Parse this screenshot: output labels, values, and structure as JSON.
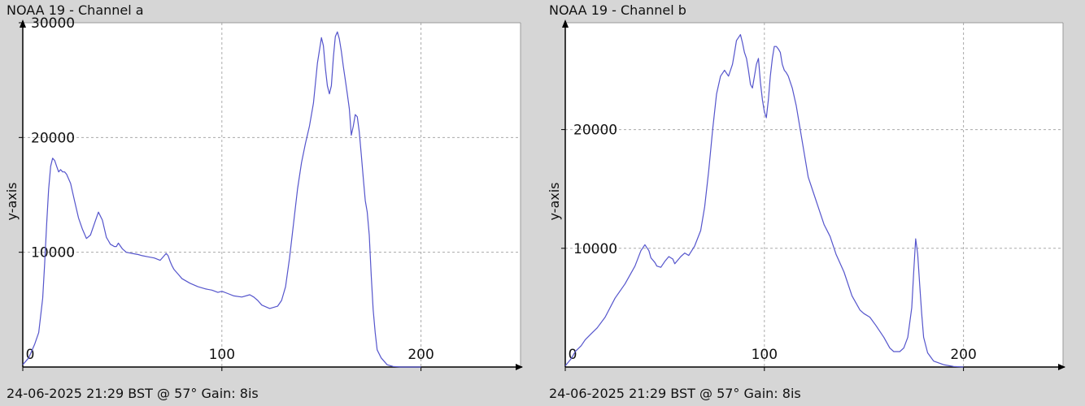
{
  "chart_data": [
    {
      "type": "line",
      "title": "NOAA 19 - Channel a",
      "footer": "24-06-2025 21:29 BST @ 57° Gain: 8is",
      "ylabel": "y-axis",
      "xlabel": "",
      "xlim": [
        0,
        250
      ],
      "ylim": [
        0,
        30000
      ],
      "x_ticks": [
        0,
        100,
        200
      ],
      "y_ticks": [
        10000,
        20000,
        30000
      ],
      "grid": true,
      "line_color": "#5555cc",
      "series": [
        {
          "x": [
            0,
            3,
            6,
            8,
            10,
            11,
            12,
            13,
            14,
            15,
            16,
            17,
            18,
            19,
            20,
            21,
            22,
            24,
            26,
            28,
            30,
            32,
            34,
            36,
            38,
            40,
            42,
            43,
            44,
            45,
            46,
            47,
            48,
            50,
            52,
            55,
            58,
            60,
            63,
            66,
            69,
            72,
            73,
            74,
            75,
            76,
            78,
            80,
            84,
            88,
            92,
            95,
            98,
            100,
            103,
            106,
            110,
            114,
            116,
            118,
            120,
            124,
            128,
            130,
            132,
            134,
            136,
            138,
            140,
            142,
            144,
            146,
            148,
            150,
            151,
            152,
            153,
            154,
            155,
            156,
            157,
            158,
            159,
            160,
            161,
            162,
            163,
            164,
            165,
            166,
            167,
            168,
            169,
            170,
            171,
            172,
            173,
            174,
            175,
            176,
            177,
            178,
            180,
            183,
            186,
            190,
            195,
            200
          ],
          "y": [
            200,
            800,
            2000,
            3000,
            6000,
            9000,
            12500,
            15500,
            17500,
            18200,
            18000,
            17500,
            17000,
            17200,
            17000,
            17000,
            16800,
            16000,
            14500,
            13000,
            12000,
            11200,
            11500,
            12500,
            13500,
            12800,
            11300,
            11000,
            10700,
            10600,
            10500,
            10500,
            10800,
            10300,
            10000,
            9900,
            9800,
            9700,
            9600,
            9500,
            9300,
            9900,
            9700,
            9200,
            8800,
            8500,
            8100,
            7700,
            7300,
            7000,
            6800,
            6700,
            6500,
            6600,
            6400,
            6200,
            6100,
            6300,
            6100,
            5800,
            5400,
            5100,
            5300,
            5800,
            7000,
            9500,
            12500,
            15500,
            17800,
            19500,
            21000,
            23000,
            26500,
            28700,
            28000,
            26000,
            24500,
            23800,
            24500,
            27000,
            28800,
            29200,
            28600,
            27500,
            26200,
            25000,
            23800,
            22500,
            20200,
            21000,
            22000,
            21800,
            20500,
            18500,
            16500,
            14500,
            13500,
            11500,
            8000,
            5000,
            3000,
            1500,
            800,
            200,
            50,
            0,
            0,
            0
          ]
        }
      ]
    },
    {
      "type": "line",
      "title": "NOAA 19 - Channel b",
      "footer": "24-06-2025 21:29 BST @ 57° Gain: 8is",
      "ylabel": "y-axis",
      "xlabel": "",
      "xlim": [
        0,
        250
      ],
      "ylim": [
        0,
        29000
      ],
      "x_ticks": [
        0,
        100,
        200
      ],
      "y_ticks": [
        10000,
        20000
      ],
      "grid": true,
      "line_color": "#5555cc",
      "series": [
        {
          "x": [
            0,
            3,
            5,
            8,
            10,
            13,
            16,
            20,
            25,
            30,
            35,
            38,
            40,
            42,
            43,
            44,
            45,
            46,
            48,
            50,
            52,
            54,
            55,
            56,
            58,
            60,
            62,
            65,
            68,
            70,
            72,
            74,
            76,
            78,
            80,
            82,
            84,
            85,
            86,
            88,
            89,
            90,
            91,
            92,
            93,
            94,
            95,
            96,
            97,
            98,
            99,
            100,
            101,
            102,
            103,
            104,
            105,
            106,
            107,
            108,
            109,
            110,
            111,
            112,
            113,
            114,
            116,
            118,
            120,
            122,
            125,
            128,
            130,
            133,
            136,
            140,
            144,
            148,
            150,
            153,
            156,
            160,
            163,
            165,
            168,
            170,
            172,
            174,
            175,
            176,
            177,
            178,
            179,
            180,
            182,
            185,
            190,
            195,
            200
          ],
          "y": [
            100,
            700,
            1300,
            1800,
            2300,
            2800,
            3300,
            4200,
            5800,
            7000,
            8500,
            9800,
            10300,
            9800,
            9200,
            9000,
            8800,
            8500,
            8400,
            8900,
            9300,
            9100,
            8700,
            8900,
            9300,
            9600,
            9400,
            10200,
            11500,
            13500,
            16500,
            20000,
            23000,
            24500,
            25000,
            24500,
            25500,
            26500,
            27500,
            28000,
            27300,
            26500,
            26000,
            25000,
            23800,
            23500,
            24500,
            25500,
            26000,
            24000,
            22500,
            21500,
            21000,
            22500,
            24500,
            26000,
            27000,
            27000,
            26800,
            26500,
            25500,
            25000,
            24800,
            24500,
            24000,
            23500,
            22000,
            20000,
            18000,
            16000,
            14500,
            13000,
            12000,
            11000,
            9500,
            8000,
            6000,
            4800,
            4500,
            4200,
            3500,
            2500,
            1600,
            1300,
            1300,
            1600,
            2500,
            5000,
            8000,
            10800,
            9500,
            7000,
            4500,
            2500,
            1200,
            500,
            200,
            50,
            0
          ]
        }
      ]
    }
  ]
}
